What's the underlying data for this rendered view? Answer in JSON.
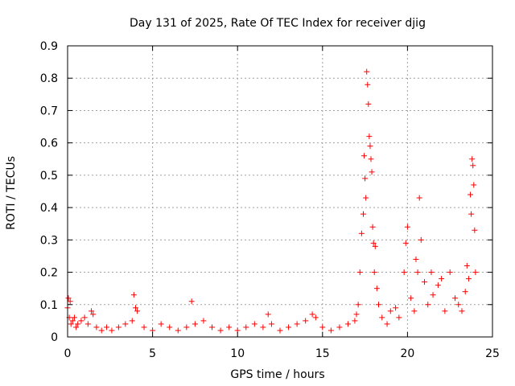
{
  "chart_data": {
    "type": "scatter",
    "title": "Day 131 of 2025, Rate Of TEC Index for receiver djig",
    "xlabel": "GPS time / hours",
    "ylabel": "ROTI / TECUs",
    "xlim": [
      0,
      25
    ],
    "ylim": [
      0,
      0.9
    ],
    "xticks": [
      0,
      5,
      10,
      15,
      20,
      25
    ],
    "yticks": [
      0,
      0.1,
      0.2,
      0.3,
      0.4,
      0.5,
      0.6,
      0.7,
      0.8,
      0.9
    ],
    "xtick_labels": [
      "0",
      "5",
      "10",
      "15",
      "20",
      "25"
    ],
    "ytick_labels": [
      "0",
      "0.1",
      "0.2",
      "0.3",
      "0.4",
      "0.5",
      "0.6",
      "0.7",
      "0.8",
      "0.9"
    ],
    "grid": true,
    "marker": "+",
    "marker_color": "#ff0000",
    "series": [
      {
        "x": [
          0.0,
          0.05,
          0.1,
          0.15,
          0.2,
          0.3,
          0.4,
          0.5,
          0.6,
          0.8,
          1.0,
          1.2,
          1.4,
          1.5,
          1.7,
          2.0,
          2.3,
          2.6,
          3.0,
          3.4,
          3.8,
          3.9,
          4.0,
          4.1,
          4.5,
          5.0,
          5.5,
          6.0,
          6.5,
          7.0,
          7.3,
          7.5,
          8.0,
          8.5,
          9.0,
          9.5,
          10.0,
          10.5,
          11.0,
          11.5,
          11.8,
          12.0,
          12.5,
          13.0,
          13.5,
          14.0,
          14.4,
          14.6,
          15.0,
          15.5,
          16.0,
          16.5,
          16.9,
          17.0,
          17.1,
          17.2,
          17.3,
          17.4,
          17.45,
          17.5,
          17.55,
          17.6,
          17.65,
          17.7,
          17.75,
          17.8,
          17.85,
          17.9,
          17.95,
          18.0,
          18.05,
          18.1,
          18.2,
          18.3,
          18.5,
          18.8,
          19.0,
          19.3,
          19.5,
          19.8,
          19.9,
          20.0,
          20.2,
          20.4,
          20.5,
          20.6,
          20.7,
          20.8,
          21.0,
          21.2,
          21.4,
          21.5,
          21.8,
          22.0,
          22.2,
          22.5,
          22.8,
          23.0,
          23.2,
          23.4,
          23.5,
          23.6,
          23.7,
          23.75,
          23.8,
          23.85,
          23.9,
          23.95,
          24.0
        ],
        "y": [
          0.09,
          0.12,
          0.06,
          0.11,
          0.04,
          0.05,
          0.06,
          0.03,
          0.04,
          0.05,
          0.06,
          0.04,
          0.08,
          0.07,
          0.03,
          0.02,
          0.03,
          0.02,
          0.03,
          0.04,
          0.05,
          0.13,
          0.09,
          0.08,
          0.03,
          0.02,
          0.04,
          0.03,
          0.02,
          0.03,
          0.11,
          0.04,
          0.05,
          0.03,
          0.02,
          0.03,
          0.02,
          0.03,
          0.04,
          0.03,
          0.07,
          0.04,
          0.02,
          0.03,
          0.04,
          0.05,
          0.07,
          0.06,
          0.03,
          0.02,
          0.03,
          0.04,
          0.05,
          0.07,
          0.1,
          0.2,
          0.32,
          0.38,
          0.56,
          0.49,
          0.43,
          0.82,
          0.78,
          0.72,
          0.62,
          0.59,
          0.55,
          0.51,
          0.34,
          0.29,
          0.2,
          0.28,
          0.15,
          0.1,
          0.06,
          0.04,
          0.08,
          0.09,
          0.06,
          0.2,
          0.29,
          0.34,
          0.12,
          0.08,
          0.24,
          0.2,
          0.43,
          0.3,
          0.17,
          0.1,
          0.2,
          0.13,
          0.16,
          0.18,
          0.08,
          0.2,
          0.12,
          0.1,
          0.08,
          0.14,
          0.22,
          0.18,
          0.44,
          0.38,
          0.55,
          0.53,
          0.47,
          0.33,
          0.2
        ]
      }
    ]
  }
}
